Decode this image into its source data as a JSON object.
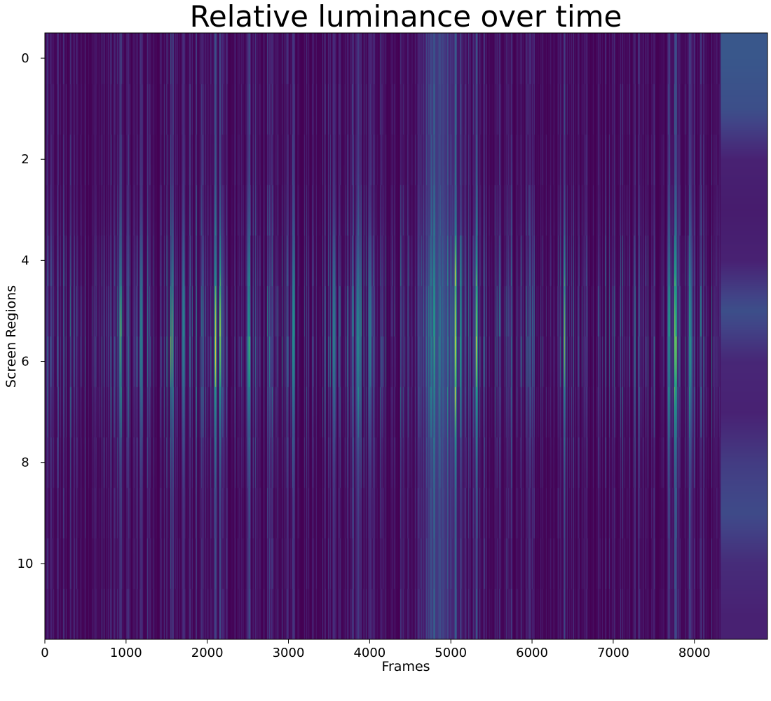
{
  "chart_data": {
    "type": "heatmap",
    "title": "Relative luminance over time",
    "xlabel": "Frames",
    "ylabel": "Screen Regions",
    "xlim": [
      0,
      8900
    ],
    "ylim": [
      11.5,
      -0.5
    ],
    "x_ticks": [
      0,
      1000,
      2000,
      3000,
      4000,
      5000,
      6000,
      7000,
      8000
    ],
    "y_ticks": [
      0,
      2,
      4,
      6,
      8,
      10
    ],
    "regions": [
      0,
      1,
      2,
      3,
      4,
      5,
      6,
      7,
      8,
      9,
      10,
      11
    ],
    "frames_with_data": 8320,
    "colormap": "viridis",
    "value_range": [
      0,
      1
    ],
    "grid": false,
    "colorbar": false,
    "notable_bright_frames": [
      920,
      1180,
      1560,
      1700,
      2100,
      2160,
      2500,
      3060,
      3560,
      3850,
      3880,
      4000,
      5050,
      5310,
      6400,
      7680,
      7760,
      7950
    ],
    "tail_segment": {
      "x_range": [
        8320,
        8900
      ],
      "region_values": [
        0.34,
        0.3,
        0.12,
        0.1,
        0.12,
        0.3,
        0.14,
        0.12,
        0.22,
        0.28,
        0.16,
        0.12
      ]
    }
  }
}
